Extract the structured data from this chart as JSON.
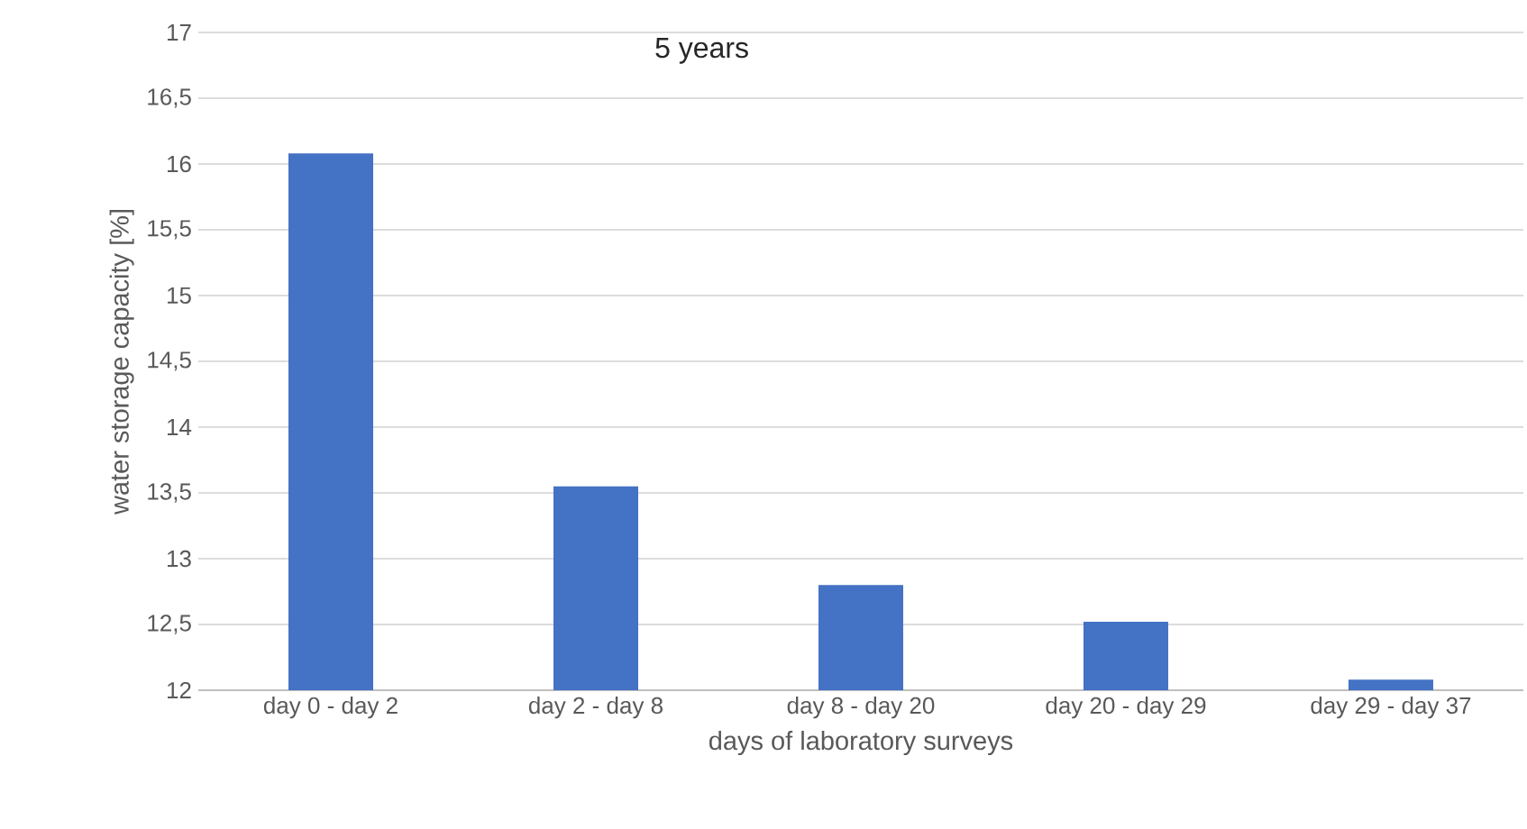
{
  "chart_data": {
    "type": "bar",
    "title": "5 years",
    "xlabel": "days of laboratory surveys",
    "ylabel": "water storage capacity [%]",
    "categories": [
      "day 0 - day 2",
      "day 2 - day 8",
      "day 8 - day 20",
      "day 20 - day 29",
      "day 29 - day 37"
    ],
    "values": [
      16.08,
      13.55,
      12.8,
      12.52,
      12.08
    ],
    "color": "#4472c4",
    "ylim": [
      12,
      17
    ],
    "yticks": [
      12,
      {
        "value": 12.5,
        "label": "12,5"
      },
      13,
      {
        "value": 13.5,
        "label": "13,5"
      },
      14,
      {
        "value": 14.5,
        "label": "14,5"
      },
      15,
      {
        "value": 15.5,
        "label": "15,5"
      },
      16,
      {
        "value": 16.5,
        "label": "16,5"
      },
      17
    ],
    "grid": "y"
  }
}
